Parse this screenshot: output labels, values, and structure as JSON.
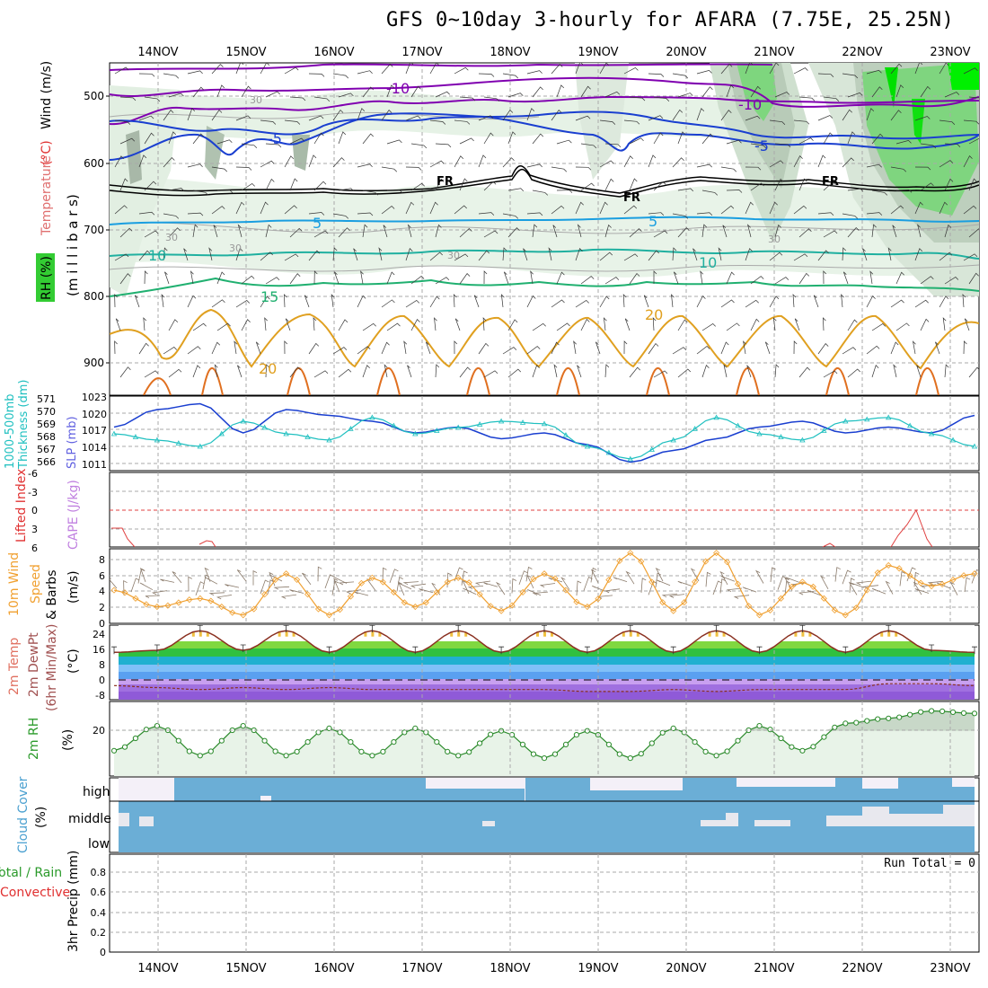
{
  "title": "GFS 0~10day 3-hourly for AFARA (7.75E, 25.25N)",
  "dates": [
    "14NOV",
    "15NOV",
    "16NOV",
    "17NOV",
    "18NOV",
    "19NOV",
    "20NOV",
    "21NOV",
    "22NOV",
    "23NOV"
  ],
  "panels": {
    "upper": {
      "label_rh": "RH (%)",
      "label_temp": "Temperature",
      "label_temp_unit": "(°C)",
      "label_wind": "Wind (m/s)",
      "label_axis": "(m i l l i b a r s)",
      "yticks": [
        "500",
        "600",
        "700",
        "800",
        "900"
      ],
      "contour_labels": [
        "-10",
        "-10",
        "-5",
        "-5",
        "FR",
        "FR",
        "FR",
        "5",
        "5",
        "10",
        "10",
        "15",
        "20",
        "20",
        "30",
        "30",
        "30",
        "30",
        "30"
      ]
    },
    "slp": {
      "label_thick": "1000-500mb",
      "label_thick2": "Thickness (dm)",
      "label_slp": "SLP (mb)",
      "yticks_left": [
        "571",
        "570",
        "569",
        "568",
        "567",
        "566"
      ],
      "yticks_right": [
        "1023",
        "1020",
        "1017",
        "1014",
        "1011"
      ]
    },
    "li": {
      "label_li": "Lifted Index",
      "label_cape": "CAPE (J/kg)",
      "yticks": [
        "-6",
        "-3",
        "0",
        "3",
        "6"
      ]
    },
    "wind10": {
      "label1": "10m Wind",
      "label2": "Speed",
      "label3": "& Barbs",
      "label_unit": "(m/s)",
      "yticks": [
        "8",
        "6",
        "4",
        "2",
        "0"
      ]
    },
    "temp2m": {
      "label1": "2m Temp",
      "label2": "2m DewPt",
      "label3": "(6hr Min/Max)",
      "label_unit": "(°C)",
      "yticks": [
        "24",
        "16",
        "8",
        "0",
        "-8"
      ]
    },
    "rh2m": {
      "label": "2m RH",
      "label_unit": "(%)",
      "yticks": [
        "20"
      ]
    },
    "cloud": {
      "label": "Cloud Cover",
      "label_unit": "(%)",
      "levels": [
        "high",
        "middle",
        "low"
      ]
    },
    "precip": {
      "label_total": "Total / Rain",
      "label_conv": "Convective",
      "label_axis": "3hr Precip (mm)",
      "run_total": "Run Total = 0",
      "yticks": [
        "0.8",
        "0.6",
        "0.4",
        "0.2",
        "0"
      ]
    }
  },
  "colors": {
    "rh_green": "#33cc33",
    "temp_purple": "#8000b0",
    "temp_blue": "#1a3fd0",
    "temp_cyan": "#1a9ee0",
    "temp_teal": "#20b0a0",
    "temp_green": "#20b070",
    "temp_orange": "#e0a020",
    "slp_blue": "#1a3fd0",
    "thick_cyan": "#20c0c0",
    "wind_orange": "#f0a030",
    "cloud_blue": "#6baed6",
    "rh2m_green": "#2a8a2a"
  },
  "chart_data": [
    {
      "type": "line",
      "title": "1000-500mb Thickness (dm) / SLP (mb)",
      "x": [
        "13NOV12",
        "14NOV00",
        "14NOV12",
        "15NOV00",
        "15NOV12",
        "16NOV00",
        "16NOV12",
        "17NOV00",
        "17NOV12",
        "18NOV00",
        "18NOV12",
        "19NOV00",
        "19NOV12",
        "20NOV00",
        "20NOV12",
        "21NOV00",
        "21NOV12",
        "22NOV00",
        "22NOV12",
        "23NOV00",
        "23NOV06"
      ],
      "series": [
        {
          "name": "SLP (mb)",
          "values": [
            1018,
            1021,
            1022,
            1017,
            1021,
            1020,
            1019,
            1017,
            1018,
            1016,
            1017,
            1015,
            1012,
            1014,
            1016,
            1018,
            1019,
            1017,
            1018,
            1017,
            1020
          ]
        },
        {
          "name": "Thickness (dm)",
          "values": [
            568.5,
            568.0,
            567.5,
            569.5,
            568.5,
            568.0,
            569.8,
            568.5,
            569.0,
            569.5,
            569.3,
            567.5,
            566.5,
            568.0,
            569.8,
            568.5,
            568.0,
            569.5,
            569.8,
            568.5,
            567.5
          ]
        }
      ],
      "ylim": [
        1011,
        1023
      ]
    },
    {
      "type": "line",
      "title": "10m Wind Speed (m/s)",
      "x": [
        "13NOV12",
        "14NOV00",
        "14NOV12",
        "15NOV00",
        "15NOV12",
        "16NOV00",
        "16NOV12",
        "17NOV00",
        "17NOV12",
        "18NOV00",
        "18NOV12",
        "19NOV00",
        "19NOV12",
        "20NOV00",
        "20NOV12",
        "21NOV00",
        "21NOV12",
        "22NOV00",
        "22NOV12",
        "23NOV00",
        "23NOV06"
      ],
      "values": [
        4,
        2,
        3,
        1,
        6,
        1,
        5.5,
        2,
        5.5,
        1.5,
        6,
        2,
        8.5,
        1.5,
        8.5,
        1,
        5,
        1,
        7,
        4.5,
        6
      ],
      "ylim": [
        0,
        9
      ]
    },
    {
      "type": "area",
      "title": "2m Temp (°C)",
      "x": [
        "13NOV12",
        "14NOV00",
        "14NOV12",
        "15NOV00",
        "15NOV12",
        "16NOV00",
        "16NOV12",
        "17NOV00",
        "17NOV12",
        "18NOV00",
        "18NOV12",
        "19NOV00",
        "19NOV12",
        "20NOV00",
        "20NOV12",
        "21NOV00",
        "21NOV12",
        "22NOV00",
        "22NOV12",
        "23NOV00",
        "23NOV06"
      ],
      "series": [
        {
          "name": "2m Temp",
          "values": [
            16,
            17,
            27,
            17,
            27,
            16,
            27,
            16,
            27,
            16,
            27,
            16,
            27,
            16,
            27,
            16,
            27,
            16,
            27,
            17,
            16
          ]
        },
        {
          "name": "2m DewPt",
          "values": [
            -1,
            -2,
            -3,
            -2,
            -3,
            -2,
            -3,
            -3,
            -3,
            -3,
            -3,
            -4,
            -4,
            -3,
            -4,
            -3,
            -3,
            -3,
            0,
            0,
            -1
          ]
        }
      ],
      "ylim": [
        -10,
        28
      ]
    },
    {
      "type": "line",
      "title": "2m RH (%)",
      "x": [
        "13NOV12",
        "14NOV00",
        "14NOV12",
        "15NOV00",
        "15NOV12",
        "16NOV00",
        "16NOV12",
        "17NOV00",
        "17NOV12",
        "18NOV00",
        "18NOV12",
        "19NOV00",
        "19NOV12",
        "20NOV00",
        "20NOV12",
        "21NOV00",
        "21NOV12",
        "22NOV00",
        "22NOV12",
        "23NOV00",
        "23NOV06"
      ],
      "values": [
        12,
        22,
        10,
        22,
        10,
        21,
        10,
        21,
        10,
        20,
        9,
        20,
        9,
        21,
        10,
        22,
        12,
        23,
        25,
        28,
        27
      ],
      "ylim": [
        0,
        30
      ]
    },
    {
      "type": "bar",
      "title": "3hr Precip (mm)",
      "categories": [
        "14NOV",
        "15NOV",
        "16NOV",
        "17NOV",
        "18NOV",
        "19NOV",
        "20NOV",
        "21NOV",
        "22NOV",
        "23NOV"
      ],
      "values": [
        0,
        0,
        0,
        0,
        0,
        0,
        0,
        0,
        0,
        0
      ],
      "ylim": [
        0,
        0.9
      ]
    }
  ]
}
